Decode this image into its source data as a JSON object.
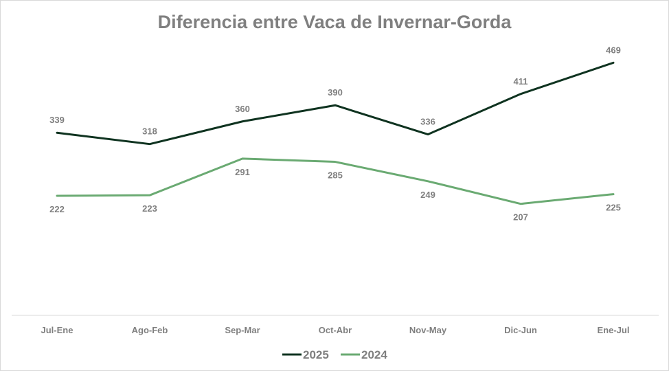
{
  "chart_data": {
    "type": "line",
    "title": "Diferencia entre Vaca de Invernar-Gorda",
    "categories": [
      "Jul-Ene",
      "Ago-Feb",
      "Sep-Mar",
      "Oct-Abr",
      "Nov-May",
      "Dic-Jun",
      "Ene-Jul"
    ],
    "series": [
      {
        "name": "2025",
        "values": [
          339,
          318,
          360,
          390,
          336,
          411,
          469
        ],
        "color": "#0f3320",
        "label_pos": "above"
      },
      {
        "name": "2024",
        "values": [
          222,
          223,
          291,
          285,
          249,
          207,
          225
        ],
        "color": "#6aaa72",
        "label_pos": "below"
      }
    ],
    "xlabel": "",
    "ylabel": "",
    "ylim": [
      0,
      500
    ],
    "grid": false,
    "legend": "bottom"
  }
}
